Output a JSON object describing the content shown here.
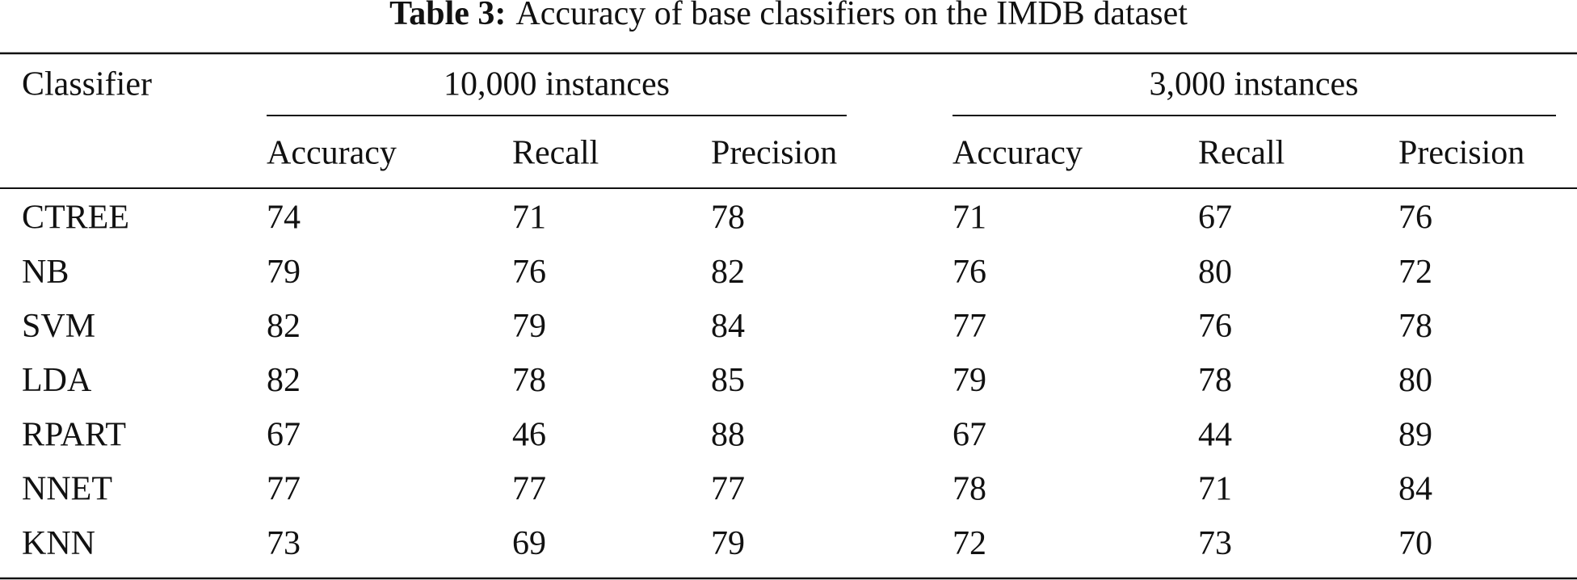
{
  "caption": {
    "label": "Table 3:",
    "text": "Accuracy of base classifiers on the IMDB dataset"
  },
  "table": {
    "header": {
      "first": "Classifier",
      "groups": [
        "10,000 instances",
        "3,000 instances"
      ],
      "columns": [
        "Accuracy",
        "Recall",
        "Precision",
        "Accuracy",
        "Recall",
        "Precision"
      ]
    },
    "rows": [
      [
        "CTREE",
        74,
        71,
        78,
        71,
        67,
        76
      ],
      [
        "NB",
        79,
        76,
        82,
        76,
        80,
        72
      ],
      [
        "SVM",
        82,
        79,
        84,
        77,
        76,
        78
      ],
      [
        "LDA",
        82,
        78,
        85,
        79,
        78,
        80
      ],
      [
        "RPART",
        67,
        46,
        88,
        67,
        44,
        89
      ],
      [
        "NNET",
        77,
        77,
        77,
        78,
        71,
        84
      ],
      [
        "KNN",
        73,
        69,
        79,
        72,
        73,
        70
      ]
    ]
  }
}
